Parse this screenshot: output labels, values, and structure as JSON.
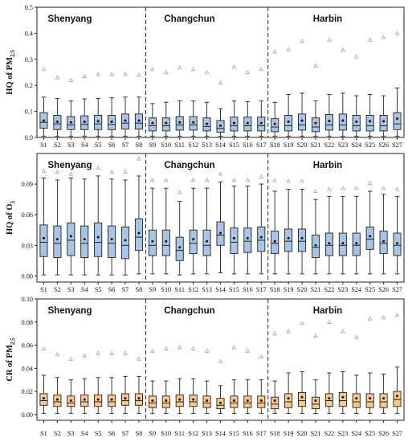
{
  "chart_data": [
    {
      "type": "box",
      "ylabel": "HQ of PM",
      "ylabel_sub": "2.5",
      "ylim": [
        0,
        0.5
      ],
      "yticks": [
        "0.0",
        "0.1",
        "0.2",
        "0.3",
        "0.4",
        "0.5"
      ],
      "box_color": "#a9c5e6",
      "regions": [
        "Shenyang",
        "Changchun",
        "Harbin"
      ],
      "region_splits_after": [
        "S8",
        "S17"
      ],
      "categories": [
        "S1",
        "S2",
        "S3",
        "S4",
        "S5",
        "S6",
        "S7",
        "S8",
        "S9",
        "S10",
        "S11",
        "S12",
        "S13",
        "S14",
        "S15",
        "S16",
        "S17",
        "S18",
        "S19",
        "S20",
        "S21",
        "S22",
        "S23",
        "S24",
        "S25",
        "S26",
        "S27"
      ],
      "stats": [
        {
          "whislo": 0.005,
          "q1": 0.035,
          "med": 0.058,
          "q3": 0.095,
          "whishi": 0.155,
          "mean": 0.065,
          "outlier": 0.262
        },
        {
          "whislo": 0.005,
          "q1": 0.03,
          "med": 0.052,
          "q3": 0.085,
          "whishi": 0.15,
          "mean": 0.06,
          "outlier": 0.23
        },
        {
          "whislo": 0.005,
          "q1": 0.03,
          "med": 0.048,
          "q3": 0.08,
          "whishi": 0.14,
          "mean": 0.058,
          "outlier": 0.22
        },
        {
          "whislo": 0.005,
          "q1": 0.03,
          "med": 0.05,
          "q3": 0.083,
          "whishi": 0.148,
          "mean": 0.06,
          "outlier": 0.235
        },
        {
          "whislo": 0.005,
          "q1": 0.03,
          "med": 0.052,
          "q3": 0.085,
          "whishi": 0.15,
          "mean": 0.062,
          "outlier": 0.243
        },
        {
          "whislo": 0.005,
          "q1": 0.03,
          "med": 0.05,
          "q3": 0.085,
          "whishi": 0.152,
          "mean": 0.06,
          "outlier": 0.242
        },
        {
          "whislo": 0.005,
          "q1": 0.032,
          "med": 0.055,
          "q3": 0.09,
          "whishi": 0.155,
          "mean": 0.065,
          "outlier": 0.243
        },
        {
          "whislo": 0.005,
          "q1": 0.032,
          "med": 0.055,
          "q3": 0.09,
          "whishi": 0.155,
          "mean": 0.065,
          "outlier": 0.24
        },
        {
          "whislo": 0.005,
          "q1": 0.025,
          "med": 0.045,
          "q3": 0.075,
          "whishi": 0.13,
          "mean": 0.055,
          "outlier": 0.262
        },
        {
          "whislo": 0.005,
          "q1": 0.025,
          "med": 0.045,
          "q3": 0.075,
          "whishi": 0.135,
          "mean": 0.055,
          "outlier": 0.25
        },
        {
          "whislo": 0.005,
          "q1": 0.028,
          "med": 0.048,
          "q3": 0.08,
          "whishi": 0.14,
          "mean": 0.058,
          "outlier": 0.268
        },
        {
          "whislo": 0.005,
          "q1": 0.028,
          "med": 0.048,
          "q3": 0.08,
          "whishi": 0.14,
          "mean": 0.058,
          "outlier": 0.262
        },
        {
          "whislo": 0.005,
          "q1": 0.025,
          "med": 0.042,
          "q3": 0.075,
          "whishi": 0.135,
          "mean": 0.052,
          "outlier": 0.25
        },
        {
          "whislo": 0.005,
          "q1": 0.02,
          "med": 0.035,
          "q3": 0.065,
          "whishi": 0.11,
          "mean": 0.045,
          "outlier": 0.21
        },
        {
          "whislo": 0.005,
          "q1": 0.025,
          "med": 0.045,
          "q3": 0.078,
          "whishi": 0.14,
          "mean": 0.055,
          "outlier": 0.272
        },
        {
          "whislo": 0.005,
          "q1": 0.025,
          "med": 0.045,
          "q3": 0.078,
          "whishi": 0.138,
          "mean": 0.055,
          "outlier": 0.25
        },
        {
          "whislo": 0.005,
          "q1": 0.025,
          "med": 0.045,
          "q3": 0.078,
          "whishi": 0.14,
          "mean": 0.055,
          "outlier": 0.262
        },
        {
          "whislo": 0.005,
          "q1": 0.022,
          "med": 0.04,
          "q3": 0.072,
          "whishi": 0.135,
          "mean": 0.052,
          "outlier": 0.33
        },
        {
          "whislo": 0.005,
          "q1": 0.025,
          "med": 0.045,
          "q3": 0.085,
          "whishi": 0.165,
          "mean": 0.06,
          "outlier": 0.338
        },
        {
          "whislo": 0.005,
          "q1": 0.028,
          "med": 0.048,
          "q3": 0.09,
          "whishi": 0.17,
          "mean": 0.065,
          "outlier": 0.37
        },
        {
          "whislo": 0.005,
          "q1": 0.022,
          "med": 0.04,
          "q3": 0.075,
          "whishi": 0.14,
          "mean": 0.055,
          "outlier": 0.275
        },
        {
          "whislo": 0.005,
          "q1": 0.028,
          "med": 0.048,
          "q3": 0.088,
          "whishi": 0.165,
          "mean": 0.063,
          "outlier": 0.375
        },
        {
          "whislo": 0.005,
          "q1": 0.028,
          "med": 0.048,
          "q3": 0.09,
          "whishi": 0.17,
          "mean": 0.065,
          "outlier": 0.336
        },
        {
          "whislo": 0.005,
          "q1": 0.025,
          "med": 0.045,
          "q3": 0.085,
          "whishi": 0.16,
          "mean": 0.06,
          "outlier": 0.31
        },
        {
          "whislo": 0.005,
          "q1": 0.025,
          "med": 0.045,
          "q3": 0.085,
          "whishi": 0.165,
          "mean": 0.062,
          "outlier": 0.375
        },
        {
          "whislo": 0.005,
          "q1": 0.025,
          "med": 0.045,
          "q3": 0.085,
          "whishi": 0.16,
          "mean": 0.062,
          "outlier": 0.385
        },
        {
          "whislo": 0.005,
          "q1": 0.03,
          "med": 0.052,
          "q3": 0.095,
          "whishi": 0.19,
          "mean": 0.072,
          "outlier": 0.4
        }
      ]
    },
    {
      "type": "box",
      "ylabel": "HQ of O",
      "ylabel_sub": "3",
      "ylim": [
        -0.006,
        0.12
      ],
      "yticks": [
        "0.00",
        "0.03",
        "0.06",
        "0.09"
      ],
      "ytick_values": [
        0,
        0.03,
        0.06,
        0.09
      ],
      "box_color": "#a9c5e6",
      "regions": [
        "Shenyang",
        "Changchun",
        "Harbin"
      ],
      "region_splits_after": [
        "S8",
        "S17"
      ],
      "categories": [
        "S1",
        "S2",
        "S3",
        "S4",
        "S5",
        "S6",
        "S7",
        "S8",
        "S9",
        "S10",
        "S11",
        "S12",
        "S13",
        "S14",
        "S15",
        "S16",
        "S17",
        "S18",
        "S19",
        "S20",
        "S21",
        "S22",
        "S23",
        "S24",
        "S25",
        "S26",
        "S27"
      ],
      "stats": [
        {
          "whislo": 0.001,
          "q1": 0.019,
          "med": 0.033,
          "q3": 0.05,
          "whishi": 0.096,
          "mean": 0.037,
          "outlier": 0.103
        },
        {
          "whislo": 0.001,
          "q1": 0.018,
          "med": 0.032,
          "q3": 0.049,
          "whishi": 0.094,
          "mean": 0.036,
          "outlier": 0.102
        },
        {
          "whislo": 0.001,
          "q1": 0.02,
          "med": 0.035,
          "q3": 0.052,
          "whishi": 0.096,
          "mean": 0.039,
          "outlier": 0.1
        },
        {
          "whislo": 0.001,
          "q1": 0.018,
          "med": 0.032,
          "q3": 0.049,
          "whishi": 0.095,
          "mean": 0.036,
          "outlier": 0.108
        },
        {
          "whislo": 0.001,
          "q1": 0.019,
          "med": 0.033,
          "q3": 0.052,
          "whishi": 0.098,
          "mean": 0.038,
          "outlier": 0.106
        },
        {
          "whislo": 0.001,
          "q1": 0.018,
          "med": 0.032,
          "q3": 0.049,
          "whishi": 0.095,
          "mean": 0.036,
          "outlier": 0.102
        },
        {
          "whislo": 0.001,
          "q1": 0.017,
          "med": 0.03,
          "q3": 0.048,
          "whishi": 0.094,
          "mean": 0.035,
          "outlier": 0.102
        },
        {
          "whislo": 0.002,
          "q1": 0.025,
          "med": 0.038,
          "q3": 0.056,
          "whishi": 0.098,
          "mean": 0.042,
          "outlier": 0.115
        },
        {
          "whislo": 0.002,
          "q1": 0.02,
          "med": 0.03,
          "q3": 0.045,
          "whishi": 0.086,
          "mean": 0.034,
          "outlier": 0.094
        },
        {
          "whislo": 0.002,
          "q1": 0.02,
          "med": 0.03,
          "q3": 0.045,
          "whishi": 0.086,
          "mean": 0.034,
          "outlier": 0.094
        },
        {
          "whislo": 0.001,
          "q1": 0.015,
          "med": 0.025,
          "q3": 0.038,
          "whishi": 0.073,
          "mean": 0.028,
          "outlier": 0.082
        },
        {
          "whislo": 0.002,
          "q1": 0.022,
          "med": 0.032,
          "q3": 0.045,
          "whishi": 0.086,
          "mean": 0.036,
          "outlier": 0.094
        },
        {
          "whislo": 0.002,
          "q1": 0.02,
          "med": 0.03,
          "q3": 0.045,
          "whishi": 0.086,
          "mean": 0.034,
          "outlier": 0.094
        },
        {
          "whislo": 0.003,
          "q1": 0.03,
          "med": 0.04,
          "q3": 0.053,
          "whishi": 0.092,
          "mean": 0.042,
          "outlier": 0.1
        },
        {
          "whislo": 0.002,
          "q1": 0.022,
          "med": 0.033,
          "q3": 0.047,
          "whishi": 0.088,
          "mean": 0.037,
          "outlier": 0.094
        },
        {
          "whislo": 0.002,
          "q1": 0.023,
          "med": 0.034,
          "q3": 0.047,
          "whishi": 0.088,
          "mean": 0.037,
          "outlier": 0.094
        },
        {
          "whislo": 0.002,
          "q1": 0.024,
          "med": 0.035,
          "q3": 0.048,
          "whishi": 0.09,
          "mean": 0.038,
          "outlier": 0.097
        },
        {
          "whislo": 0.002,
          "q1": 0.022,
          "med": 0.032,
          "q3": 0.044,
          "whishi": 0.083,
          "mean": 0.034,
          "outlier": 0.094
        },
        {
          "whislo": 0.002,
          "q1": 0.024,
          "med": 0.034,
          "q3": 0.046,
          "whishi": 0.085,
          "mean": 0.037,
          "outlier": 0.093
        },
        {
          "whislo": 0.002,
          "q1": 0.024,
          "med": 0.034,
          "q3": 0.046,
          "whishi": 0.085,
          "mean": 0.037,
          "outlier": 0.093
        },
        {
          "whislo": 0.002,
          "q1": 0.018,
          "med": 0.028,
          "q3": 0.04,
          "whishi": 0.075,
          "mean": 0.03,
          "outlier": 0.083
        },
        {
          "whislo": 0.002,
          "q1": 0.02,
          "med": 0.03,
          "q3": 0.042,
          "whishi": 0.078,
          "mean": 0.032,
          "outlier": 0.085
        },
        {
          "whislo": 0.002,
          "q1": 0.02,
          "med": 0.03,
          "q3": 0.042,
          "whishi": 0.078,
          "mean": 0.032,
          "outlier": 0.086
        },
        {
          "whislo": 0.002,
          "q1": 0.02,
          "med": 0.03,
          "q3": 0.042,
          "whishi": 0.078,
          "mean": 0.032,
          "outlier": 0.086
        },
        {
          "whislo": 0.002,
          "q1": 0.026,
          "med": 0.036,
          "q3": 0.048,
          "whishi": 0.083,
          "mean": 0.039,
          "outlier": 0.091
        },
        {
          "whislo": 0.002,
          "q1": 0.022,
          "med": 0.032,
          "q3": 0.044,
          "whishi": 0.08,
          "mean": 0.034,
          "outlier": 0.086
        },
        {
          "whislo": 0.002,
          "q1": 0.02,
          "med": 0.03,
          "q3": 0.042,
          "whishi": 0.078,
          "mean": 0.032,
          "outlier": 0.085
        }
      ]
    },
    {
      "type": "box",
      "ylabel": "CR of PM",
      "ylabel_sub": "2.5",
      "ylim": [
        -0.005,
        0.1
      ],
      "yticks": [
        "0.00",
        "0.02",
        "0.04",
        "0.06",
        "0.08",
        "0.10"
      ],
      "ytick_values": [
        0,
        0.02,
        0.04,
        0.06,
        0.08,
        0.1
      ],
      "box_color": "#f9c98a",
      "regions": [
        "Shenyang",
        "Changchun",
        "Harbin"
      ],
      "region_splits_after": [
        "S8",
        "S17"
      ],
      "categories": [
        "S1",
        "S2",
        "S3",
        "S4",
        "S5",
        "S6",
        "S7",
        "S8",
        "S9",
        "S10",
        "S11",
        "S12",
        "S13",
        "S14",
        "S15",
        "S16",
        "S17",
        "S18",
        "S19",
        "S20",
        "S21",
        "S22",
        "S23",
        "S24",
        "S25",
        "S26",
        "S27"
      ],
      "stats": [
        {
          "whislo": 0.001,
          "q1": 0.008,
          "med": 0.012,
          "q3": 0.018,
          "whishi": 0.034,
          "mean": 0.014,
          "outlier": 0.057
        },
        {
          "whislo": 0.001,
          "q1": 0.007,
          "med": 0.011,
          "q3": 0.017,
          "whishi": 0.032,
          "mean": 0.013,
          "outlier": 0.052
        },
        {
          "whislo": 0.001,
          "q1": 0.007,
          "med": 0.01,
          "q3": 0.016,
          "whishi": 0.03,
          "mean": 0.012,
          "outlier": 0.048
        },
        {
          "whislo": 0.001,
          "q1": 0.007,
          "med": 0.011,
          "q3": 0.017,
          "whishi": 0.031,
          "mean": 0.013,
          "outlier": 0.051
        },
        {
          "whislo": 0.001,
          "q1": 0.007,
          "med": 0.011,
          "q3": 0.017,
          "whishi": 0.032,
          "mean": 0.013,
          "outlier": 0.053
        },
        {
          "whislo": 0.001,
          "q1": 0.007,
          "med": 0.011,
          "q3": 0.017,
          "whishi": 0.032,
          "mean": 0.013,
          "outlier": 0.053
        },
        {
          "whislo": 0.001,
          "q1": 0.008,
          "med": 0.012,
          "q3": 0.018,
          "whishi": 0.033,
          "mean": 0.014,
          "outlier": 0.053
        },
        {
          "whislo": 0.001,
          "q1": 0.008,
          "med": 0.012,
          "q3": 0.018,
          "whishi": 0.033,
          "mean": 0.014,
          "outlier": 0.048
        },
        {
          "whislo": 0.001,
          "q1": 0.006,
          "med": 0.01,
          "q3": 0.016,
          "whishi": 0.029,
          "mean": 0.012,
          "outlier": 0.055
        },
        {
          "whislo": 0.001,
          "q1": 0.006,
          "med": 0.01,
          "q3": 0.016,
          "whishi": 0.029,
          "mean": 0.012,
          "outlier": 0.057
        },
        {
          "whislo": 0.001,
          "q1": 0.007,
          "med": 0.011,
          "q3": 0.017,
          "whishi": 0.031,
          "mean": 0.013,
          "outlier": 0.058
        },
        {
          "whislo": 0.001,
          "q1": 0.007,
          "med": 0.011,
          "q3": 0.017,
          "whishi": 0.031,
          "mean": 0.013,
          "outlier": 0.057
        },
        {
          "whislo": 0.001,
          "q1": 0.006,
          "med": 0.01,
          "q3": 0.016,
          "whishi": 0.029,
          "mean": 0.012,
          "outlier": 0.055
        },
        {
          "whislo": 0.001,
          "q1": 0.005,
          "med": 0.008,
          "q3": 0.014,
          "whishi": 0.025,
          "mean": 0.01,
          "outlier": 0.046
        },
        {
          "whislo": 0.001,
          "q1": 0.006,
          "med": 0.01,
          "q3": 0.016,
          "whishi": 0.03,
          "mean": 0.012,
          "outlier": 0.058
        },
        {
          "whislo": 0.001,
          "q1": 0.006,
          "med": 0.01,
          "q3": 0.016,
          "whishi": 0.03,
          "mean": 0.012,
          "outlier": 0.055
        },
        {
          "whislo": 0.001,
          "q1": 0.006,
          "med": 0.01,
          "q3": 0.016,
          "whishi": 0.03,
          "mean": 0.012,
          "outlier": 0.05
        },
        {
          "whislo": 0.001,
          "q1": 0.005,
          "med": 0.009,
          "q3": 0.015,
          "whishi": 0.029,
          "mean": 0.012,
          "outlier": 0.07
        },
        {
          "whislo": 0.001,
          "q1": 0.006,
          "med": 0.011,
          "q3": 0.018,
          "whishi": 0.036,
          "mean": 0.014,
          "outlier": 0.072
        },
        {
          "whislo": 0.001,
          "q1": 0.007,
          "med": 0.012,
          "q3": 0.019,
          "whishi": 0.037,
          "mean": 0.015,
          "outlier": 0.079
        },
        {
          "whislo": 0.001,
          "q1": 0.005,
          "med": 0.009,
          "q3": 0.015,
          "whishi": 0.03,
          "mean": 0.012,
          "outlier": 0.068
        },
        {
          "whislo": 0.001,
          "q1": 0.007,
          "med": 0.012,
          "q3": 0.018,
          "whishi": 0.036,
          "mean": 0.014,
          "outlier": 0.08
        },
        {
          "whislo": 0.001,
          "q1": 0.007,
          "med": 0.012,
          "q3": 0.019,
          "whishi": 0.037,
          "mean": 0.015,
          "outlier": 0.072
        },
        {
          "whislo": 0.001,
          "q1": 0.006,
          "med": 0.011,
          "q3": 0.018,
          "whishi": 0.034,
          "mean": 0.014,
          "outlier": 0.067
        },
        {
          "whislo": 0.001,
          "q1": 0.006,
          "med": 0.011,
          "q3": 0.018,
          "whishi": 0.036,
          "mean": 0.014,
          "outlier": 0.083
        },
        {
          "whislo": 0.001,
          "q1": 0.006,
          "med": 0.011,
          "q3": 0.018,
          "whishi": 0.035,
          "mean": 0.014,
          "outlier": 0.084
        },
        {
          "whislo": 0.001,
          "q1": 0.007,
          "med": 0.013,
          "q3": 0.02,
          "whishi": 0.041,
          "mean": 0.016,
          "outlier": 0.086
        }
      ]
    }
  ]
}
